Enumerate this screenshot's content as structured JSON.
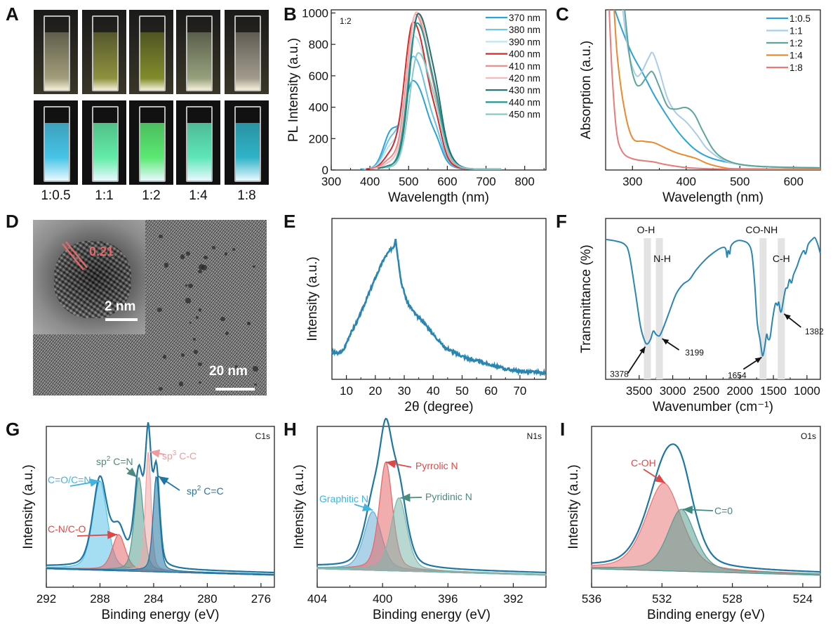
{
  "panels": {
    "A": {
      "letter": "A",
      "ratios": [
        "1:0.5",
        "1:1",
        "1:2",
        "1:4",
        "1:8"
      ],
      "daylight_colors": [
        "#d9d3a6",
        "#b9c24a",
        "#a9b82e",
        "#c6d8a8",
        "#d8d0c0"
      ],
      "uv_colors": [
        "#47c4e6",
        "#62eba7",
        "#5be872",
        "#5ee6b7",
        "#2fb3c7"
      ]
    },
    "D": {
      "letter": "D",
      "lattice_spacing": "0.21",
      "inset_scale": "2 nm",
      "main_scale": "20 nm"
    },
    "B": {
      "letter": "B"
    },
    "C": {
      "letter": "C"
    },
    "E": {
      "letter": "E"
    },
    "F": {
      "letter": "F"
    },
    "G": {
      "letter": "G"
    },
    "H": {
      "letter": "H"
    },
    "I": {
      "letter": "I"
    }
  },
  "chart_data": [
    {
      "id": "B",
      "type": "line",
      "xlabel": "Wavelength (nm)",
      "ylabel": "PL Intensity (a.u.)",
      "annotation": "1:2",
      "xlim": [
        300,
        855
      ],
      "ylim": [
        0,
        1020
      ],
      "xticks": [
        300,
        400,
        500,
        600,
        700,
        800
      ],
      "yticks": [
        0,
        200,
        400,
        600,
        800,
        1000
      ],
      "legend_position": "top-right",
      "series": [
        {
          "name": "370 nm",
          "color": "#2ba3d6",
          "peak_x": 512,
          "peak_y": 560,
          "shoulder_y": 230,
          "start_x": 375,
          "end_x": 710
        },
        {
          "name": "380 nm",
          "color": "#6cc0e6",
          "peak_x": 512,
          "peak_y": 715,
          "shoulder_y": 180,
          "start_x": 380,
          "end_x": 720
        },
        {
          "name": "390 nm",
          "color": "#bfe4f2",
          "peak_x": 515,
          "peak_y": 845,
          "shoulder_y": 140,
          "start_x": 385,
          "end_x": 725
        },
        {
          "name": "400 nm",
          "color": "#d62a2a",
          "peak_x": 512,
          "peak_y": 935,
          "shoulder_y": 90,
          "start_x": 390,
          "end_x": 730
        },
        {
          "name": "410 nm",
          "color": "#e8898a",
          "peak_x": 518,
          "peak_y": 985,
          "shoulder_y": 60,
          "start_x": 400,
          "end_x": 735
        },
        {
          "name": "420 nm",
          "color": "#f3bcbc",
          "peak_x": 520,
          "peak_y": 1000,
          "shoulder_y": 40,
          "start_x": 410,
          "end_x": 740
        },
        {
          "name": "430 nm",
          "color": "#1f6f70",
          "peak_x": 525,
          "peak_y": 990,
          "shoulder_y": 20,
          "start_x": 420,
          "end_x": 740
        },
        {
          "name": "440 nm",
          "color": "#23958f",
          "peak_x": 522,
          "peak_y": 930,
          "shoulder_y": 15,
          "start_x": 430,
          "end_x": 740
        },
        {
          "name": "450 nm",
          "color": "#85cbc8",
          "peak_x": 525,
          "peak_y": 740,
          "shoulder_y": 10,
          "start_x": 440,
          "end_x": 740
        }
      ]
    },
    {
      "id": "C",
      "type": "line",
      "xlabel": "Wavelength (nm)",
      "ylabel": "Absorption (a.u.)",
      "xlim": [
        250,
        650
      ],
      "ylim": [
        0,
        1
      ],
      "xticks": [
        300,
        400,
        500,
        600
      ],
      "legend_position": "top-right",
      "series": [
        {
          "name": "1:0.5",
          "color": "#2ba3d6",
          "points": [
            [
              262,
              1.05
            ],
            [
              280,
              0.88
            ],
            [
              300,
              0.72
            ],
            [
              320,
              0.6
            ],
            [
              340,
              0.47
            ],
            [
              360,
              0.36
            ],
            [
              380,
              0.26
            ],
            [
              400,
              0.18
            ],
            [
              420,
              0.12
            ],
            [
              450,
              0.07
            ],
            [
              500,
              0.035
            ],
            [
              550,
              0.02
            ],
            [
              650,
              0.012
            ]
          ]
        },
        {
          "name": "1:1",
          "color": "#a9cde8",
          "points": [
            [
              280,
              1.05
            ],
            [
              292,
              0.75
            ],
            [
              305,
              0.6
            ],
            [
              315,
              0.6
            ],
            [
              330,
              0.7
            ],
            [
              338,
              0.73
            ],
            [
              350,
              0.62
            ],
            [
              365,
              0.45
            ],
            [
              380,
              0.36
            ],
            [
              400,
              0.3
            ],
            [
              420,
              0.22
            ],
            [
              440,
              0.13
            ],
            [
              470,
              0.06
            ],
            [
              500,
              0.035
            ],
            [
              550,
              0.02
            ],
            [
              650,
              0.015
            ]
          ]
        },
        {
          "name": "1:2",
          "color": "#5da59a",
          "points": [
            [
              284,
              1.05
            ],
            [
              295,
              0.7
            ],
            [
              305,
              0.55
            ],
            [
              315,
              0.53
            ],
            [
              330,
              0.6
            ],
            [
              338,
              0.61
            ],
            [
              350,
              0.52
            ],
            [
              365,
              0.4
            ],
            [
              380,
              0.38
            ],
            [
              400,
              0.39
            ],
            [
              415,
              0.35
            ],
            [
              430,
              0.25
            ],
            [
              450,
              0.13
            ],
            [
              470,
              0.07
            ],
            [
              500,
              0.035
            ],
            [
              550,
              0.02
            ],
            [
              650,
              0.013
            ]
          ]
        },
        {
          "name": "1:4",
          "color": "#ea8a2e",
          "points": [
            [
              265,
              1.05
            ],
            [
              272,
              0.7
            ],
            [
              285,
              0.38
            ],
            [
              300,
              0.2
            ],
            [
              320,
              0.18
            ],
            [
              340,
              0.17
            ],
            [
              360,
              0.14
            ],
            [
              380,
              0.11
            ],
            [
              400,
              0.09
            ],
            [
              420,
              0.07
            ],
            [
              440,
              0.04
            ],
            [
              470,
              0.015
            ],
            [
              500,
              0.008
            ],
            [
              650,
              0.005
            ]
          ]
        },
        {
          "name": "1:8",
          "color": "#ea7a7a",
          "points": [
            [
              256,
              1.05
            ],
            [
              262,
              0.6
            ],
            [
              270,
              0.25
            ],
            [
              280,
              0.12
            ],
            [
              300,
              0.07
            ],
            [
              340,
              0.05
            ],
            [
              360,
              0.035
            ],
            [
              400,
              0.015
            ],
            [
              450,
              0.007
            ],
            [
              500,
              0.004
            ],
            [
              650,
              0.002
            ]
          ]
        }
      ]
    },
    {
      "id": "E",
      "type": "line",
      "xlabel": "2θ (degree)",
      "ylabel": "Intensity (a.u.)",
      "xlim": [
        5,
        79
      ],
      "ylim": [
        0,
        1
      ],
      "xticks": [
        10,
        20,
        30,
        40,
        50,
        60,
        70
      ],
      "series": [
        {
          "name": "XRD",
          "color": "#2a86b0",
          "points": [
            [
              5,
              0.17
            ],
            [
              7,
              0.16
            ],
            [
              9,
              0.18
            ],
            [
              11,
              0.27
            ],
            [
              14,
              0.37
            ],
            [
              17,
              0.5
            ],
            [
              20,
              0.63
            ],
            [
              23,
              0.75
            ],
            [
              25,
              0.8
            ],
            [
              26.5,
              0.83
            ],
            [
              27,
              0.88
            ],
            [
              27.5,
              0.8
            ],
            [
              29,
              0.6
            ],
            [
              31,
              0.48
            ],
            [
              34,
              0.4
            ],
            [
              37,
              0.35
            ],
            [
              40,
              0.28
            ],
            [
              44,
              0.2
            ],
            [
              48,
              0.16
            ],
            [
              52,
              0.13
            ],
            [
              56,
              0.11
            ],
            [
              60,
              0.09
            ],
            [
              65,
              0.065
            ],
            [
              70,
              0.05
            ],
            [
              75,
              0.045
            ],
            [
              79,
              0.04
            ]
          ]
        }
      ]
    },
    {
      "id": "F",
      "type": "line",
      "xlabel": "Wavenumber (cm⁻¹)",
      "ylabel": "Transmittance (%)",
      "xlim": [
        4000,
        800
      ],
      "ylim": [
        0,
        1
      ],
      "xticks": [
        3500,
        3000,
        2500,
        2000,
        1500,
        1000
      ],
      "bands": [
        {
          "label": "O-H",
          "x": 3378,
          "label_row": "top"
        },
        {
          "label": "N-H",
          "x": 3199,
          "label_row": "middle"
        },
        {
          "label": "CO-NH",
          "x": 1654,
          "label_row": "top"
        },
        {
          "label": "C-H",
          "x": 1382,
          "label_row": "middle"
        }
      ],
      "peak_labels": [
        "3378",
        "3199",
        "1654",
        "1382"
      ],
      "series": [
        {
          "name": "FTIR",
          "color": "#2a86b0",
          "points": [
            [
              4000,
              0.87
            ],
            [
              3850,
              0.86
            ],
            [
              3720,
              0.84
            ],
            [
              3650,
              0.78
            ],
            [
              3560,
              0.55
            ],
            [
              3480,
              0.33
            ],
            [
              3420,
              0.24
            ],
            [
              3378,
              0.22
            ],
            [
              3330,
              0.25
            ],
            [
              3290,
              0.3
            ],
            [
              3250,
              0.28
            ],
            [
              3199,
              0.27
            ],
            [
              3150,
              0.31
            ],
            [
              3050,
              0.42
            ],
            [
              2950,
              0.53
            ],
            [
              2850,
              0.59
            ],
            [
              2750,
              0.62
            ],
            [
              2650,
              0.68
            ],
            [
              2500,
              0.75
            ],
            [
              2350,
              0.8
            ],
            [
              2250,
              0.82
            ],
            [
              2210,
              0.81
            ],
            [
              2190,
              0.76
            ],
            [
              2175,
              0.8
            ],
            [
              2150,
              0.78
            ],
            [
              2130,
              0.83
            ],
            [
              2050,
              0.86
            ],
            [
              1950,
              0.86
            ],
            [
              1870,
              0.84
            ],
            [
              1820,
              0.78
            ],
            [
              1780,
              0.6
            ],
            [
              1740,
              0.35
            ],
            [
              1700,
              0.25
            ],
            [
              1670,
              0.16
            ],
            [
              1654,
              0.15
            ],
            [
              1630,
              0.2
            ],
            [
              1600,
              0.28
            ],
            [
              1580,
              0.25
            ],
            [
              1550,
              0.26
            ],
            [
              1510,
              0.38
            ],
            [
              1470,
              0.47
            ],
            [
              1440,
              0.46
            ],
            [
              1420,
              0.48
            ],
            [
              1400,
              0.43
            ],
            [
              1382,
              0.42
            ],
            [
              1360,
              0.47
            ],
            [
              1320,
              0.56
            ],
            [
              1290,
              0.57
            ],
            [
              1260,
              0.62
            ],
            [
              1230,
              0.6
            ],
            [
              1200,
              0.65
            ],
            [
              1150,
              0.7
            ],
            [
              1100,
              0.76
            ],
            [
              1050,
              0.8
            ],
            [
              1020,
              0.78
            ],
            [
              980,
              0.84
            ],
            [
              920,
              0.87
            ],
            [
              880,
              0.88
            ],
            [
              840,
              0.84
            ],
            [
              800,
              0.78
            ]
          ]
        }
      ]
    },
    {
      "id": "G",
      "type": "area",
      "title": "C1s",
      "xlabel": "Binding energy (eV)",
      "ylabel": "Intensity (a.u.)",
      "xlim": [
        292,
        275
      ],
      "ylim": [
        0,
        1
      ],
      "xticks": [
        292,
        288,
        284,
        280,
        276
      ],
      "envelope_color": "#1f76a3",
      "components": [
        {
          "name": "C=O/C=N",
          "center": 288.0,
          "height": 0.55,
          "width": 0.55,
          "color": "#5bc3ea"
        },
        {
          "name": "C-N/C-O",
          "center": 286.6,
          "height": 0.22,
          "width": 0.5,
          "color": "#e56a6a"
        },
        {
          "name": "sp² C=N",
          "center": 285.1,
          "height": 0.58,
          "width": 0.35,
          "color": "#5a9e94"
        },
        {
          "name": "sp³ C-C",
          "center": 284.4,
          "height": 0.74,
          "width": 0.22,
          "color": "#f2a8a8"
        },
        {
          "name": "sp² C=C",
          "center": 283.8,
          "height": 0.59,
          "width": 0.25,
          "color": "#1f76a3"
        }
      ],
      "labels": [
        {
          "text": "C=O/C=N",
          "color": "#3fb4e0"
        },
        {
          "text": "C-N/C-O",
          "color": "#e04848"
        },
        {
          "text": "sp",
          "sup": "2",
          "rest": " C=N",
          "color": "#4b8a7f"
        },
        {
          "text": "sp",
          "sup": "3",
          "rest": " C-C",
          "color": "#ef9c9c"
        },
        {
          "text": "sp",
          "sup": "2",
          "rest": " C=C",
          "color": "#1f76a3"
        }
      ]
    },
    {
      "id": "H",
      "type": "area",
      "title": "N1s",
      "xlabel": "Binding energy (eV)",
      "ylabel": "Intensity (a.u.)",
      "xlim": [
        404,
        390
      ],
      "ylim": [
        0,
        1
      ],
      "xticks": [
        404,
        400,
        396,
        392
      ],
      "envelope_color": "#1f76a3",
      "components": [
        {
          "name": "Graphitic N",
          "center": 400.6,
          "height": 0.36,
          "width": 0.55,
          "color": "#6aaed6"
        },
        {
          "name": "Pyrrolic N",
          "center": 399.8,
          "height": 0.67,
          "width": 0.42,
          "color": "#e56a6a"
        },
        {
          "name": "Pyridinic N",
          "center": 399.0,
          "height": 0.45,
          "width": 0.5,
          "color": "#7fb8ad"
        }
      ],
      "labels": [
        {
          "text": "Graphitic N",
          "color": "#3fb4e0"
        },
        {
          "text": "Pyrrolic N",
          "color": "#e04848"
        },
        {
          "text": "Pyridinic N",
          "color": "#4b8a7f"
        }
      ]
    },
    {
      "id": "I",
      "type": "area",
      "title": "O1s",
      "xlabel": "Binding energy (eV)",
      "ylabel": "Intensity (a.u.)",
      "xlim": [
        536,
        523
      ],
      "ylim": [
        0,
        1
      ],
      "xticks": [
        536,
        532,
        528,
        524
      ],
      "envelope_color": "#1f76a3",
      "components": [
        {
          "name": "C-OH",
          "center": 531.9,
          "height": 0.54,
          "width": 1.05,
          "color": "#e87a7a"
        },
        {
          "name": "C=0",
          "center": 530.9,
          "height": 0.38,
          "width": 0.8,
          "color": "#5a9e94"
        }
      ],
      "labels": [
        {
          "text": "C-OH",
          "color": "#e04848"
        },
        {
          "text": "C=0",
          "color": "#3f8a80"
        }
      ]
    }
  ]
}
